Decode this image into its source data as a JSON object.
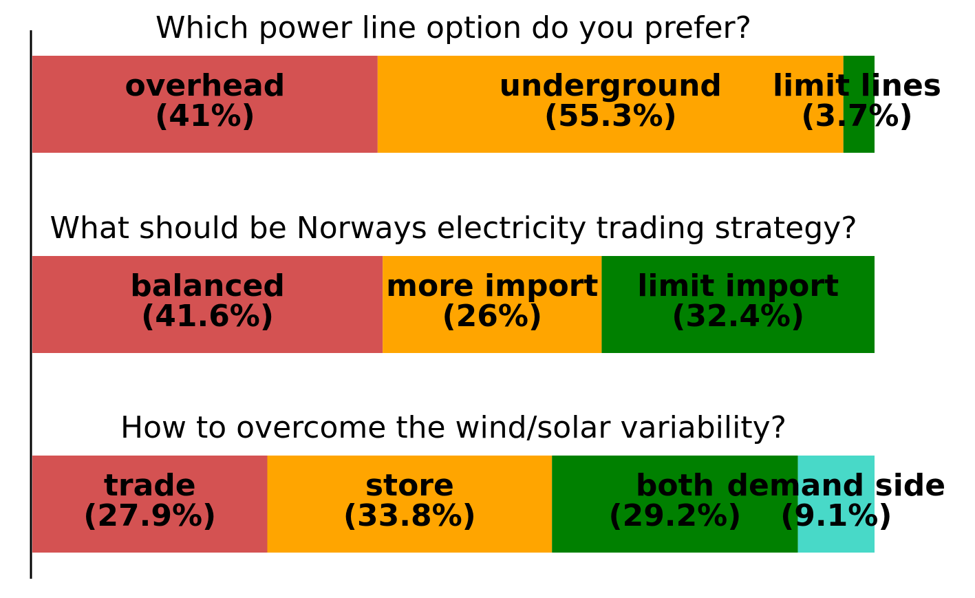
{
  "chart_data": {
    "type": "bar",
    "orientation": "horizontal-stacked",
    "xlim": [
      0,
      100
    ],
    "grid": false,
    "legend": "none",
    "questions": [
      {
        "title": "Which power line option do you prefer?",
        "segments": [
          {
            "label": "overhead",
            "percent_text": "(41%)",
            "value": 41.0,
            "color": "#d45252"
          },
          {
            "label": "underground",
            "percent_text": "(55.3%)",
            "value": 55.3,
            "color": "#ffa500"
          },
          {
            "label": "limit lines",
            "percent_text": "(3.7%)",
            "value": 3.7,
            "color": "#008000"
          }
        ]
      },
      {
        "title": "What should be Norways electricity trading strategy?",
        "segments": [
          {
            "label": "balanced",
            "percent_text": "(41.6%)",
            "value": 41.6,
            "color": "#d45252"
          },
          {
            "label": "more import",
            "percent_text": "(26%)",
            "value": 26.0,
            "color": "#ffa500"
          },
          {
            "label": "limit import",
            "percent_text": "(32.4%)",
            "value": 32.4,
            "color": "#008000"
          }
        ]
      },
      {
        "title": "How to overcome the wind/solar variability?",
        "segments": [
          {
            "label": "trade",
            "percent_text": "(27.9%)",
            "value": 27.9,
            "color": "#d45252"
          },
          {
            "label": "store",
            "percent_text": "(33.8%)",
            "value": 33.8,
            "color": "#ffa500"
          },
          {
            "label": "both",
            "percent_text": "(29.2%)",
            "value": 29.2,
            "color": "#008000"
          },
          {
            "label": "demand side",
            "percent_text": "(9.1%)",
            "value": 9.1,
            "color": "#48d9c8"
          }
        ]
      }
    ]
  }
}
